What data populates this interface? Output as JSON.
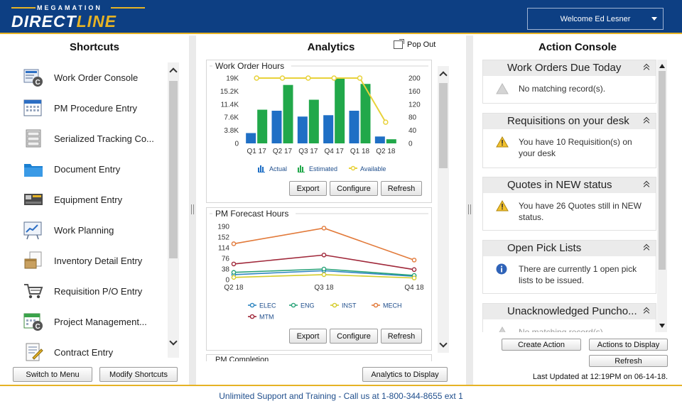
{
  "header": {
    "logo_small": "MEGAMATION",
    "logo_main": "DIRECT",
    "logo_accent": "LINE",
    "user_menu": "Welcome  Ed Lesner"
  },
  "shortcuts": {
    "title": "Shortcuts",
    "items": [
      {
        "label": "Work Order Console",
        "icon": "work-order-console-icon"
      },
      {
        "label": "PM Procedure Entry",
        "icon": "calendar-icon"
      },
      {
        "label": "Serialized Tracking Co...",
        "icon": "filing-cabinet-icon"
      },
      {
        "label": "Document Entry",
        "icon": "folder-icon"
      },
      {
        "label": "Equipment Entry",
        "icon": "equipment-icon"
      },
      {
        "label": "Work Planning",
        "icon": "planning-board-icon"
      },
      {
        "label": "Inventory Detail Entry",
        "icon": "inventory-box-icon"
      },
      {
        "label": "Requisition P/O Entry",
        "icon": "shopping-cart-icon"
      },
      {
        "label": "Project Management...",
        "icon": "project-calendar-icon"
      },
      {
        "label": "Contract Entry",
        "icon": "contract-document-icon"
      }
    ],
    "switch_button": "Switch to Menu",
    "modify_button": "Modify Shortcuts"
  },
  "analytics": {
    "title": "Analytics",
    "popout": "Pop Out",
    "button_export": "Export",
    "button_configure": "Configure",
    "button_refresh": "Refresh",
    "analytics_to_display": "Analytics to Display",
    "third_card_title": "PM Completion"
  },
  "chart_data": [
    {
      "type": "bar",
      "title": "Work Order Hours",
      "categories": [
        "Q1 17",
        "Q2 17",
        "Q3 17",
        "Q4 17",
        "Q1 18",
        "Q2 18"
      ],
      "y_ticks": [
        "19K",
        "15.2K",
        "11.4K",
        "7.6K",
        "3.8K",
        "0"
      ],
      "y2_ticks": [
        "200",
        "160",
        "120",
        "80",
        "40",
        "0"
      ],
      "ylim": [
        0,
        19000
      ],
      "y2lim": [
        0,
        200
      ],
      "series": [
        {
          "name": "Actual",
          "kind": "bar",
          "color": "#1f6fc5",
          "values": [
            3000,
            9500,
            7800,
            8200,
            9500,
            2000
          ]
        },
        {
          "name": "Estimated",
          "kind": "bar",
          "color": "#21a84a",
          "values": [
            9800,
            17000,
            12700,
            19000,
            17300,
            1200
          ]
        },
        {
          "name": "Available",
          "kind": "line",
          "axis": "right",
          "color": "#e8d23a",
          "values": [
            200,
            200,
            200,
            200,
            200,
            65
          ]
        }
      ],
      "legend": "bottom"
    },
    {
      "type": "line",
      "title": "PM Forecast Hours",
      "categories": [
        "Q2 18",
        "Q3 18",
        "Q4 18"
      ],
      "y_ticks": [
        "190",
        "152",
        "114",
        "76",
        "38",
        "0"
      ],
      "ylim": [
        0,
        190
      ],
      "series": [
        {
          "name": "ELEC",
          "color": "#2e86c1",
          "values": [
            18,
            32,
            12
          ]
        },
        {
          "name": "ENG",
          "color": "#29a37a",
          "values": [
            26,
            38,
            15
          ]
        },
        {
          "name": "INST",
          "color": "#d4cc2a",
          "values": [
            8,
            18,
            6
          ]
        },
        {
          "name": "MECH",
          "color": "#e27a3a",
          "values": [
            128,
            184,
            70
          ]
        },
        {
          "name": "MTM",
          "color": "#a0283a",
          "values": [
            56,
            88,
            36
          ]
        }
      ],
      "legend": "bottom"
    }
  ],
  "action_console": {
    "title": "Action Console",
    "sections": [
      {
        "title": "Work Orders Due Today",
        "message": "No matching record(s).",
        "icon": "gray-warning-icon"
      },
      {
        "title": "Requisitions on your desk",
        "message": "You have 10 Requisition(s) on your desk",
        "icon": "warning-icon"
      },
      {
        "title": "Quotes in NEW status",
        "message": "You have 26 Quotes still in NEW status.",
        "icon": "warning-icon"
      },
      {
        "title": "Open Pick Lists",
        "message": "There are currently 1 open pick lists to be issued.",
        "icon": "info-icon"
      },
      {
        "title": "Unacknowledged Puncho...",
        "message": "No matching record(s).",
        "icon": "gray-warning-icon"
      }
    ],
    "create_action": "Create Action",
    "actions_to_display": "Actions to Display",
    "refresh": "Refresh",
    "last_updated": "Last Updated at 12:19PM on 06-14-18."
  },
  "footer": {
    "text": "Unlimited Support and Training - Call us at 1-800-344-8655 ext 1"
  },
  "colors": {
    "header_bg": "#0d3f83",
    "accent": "#e6b325"
  }
}
